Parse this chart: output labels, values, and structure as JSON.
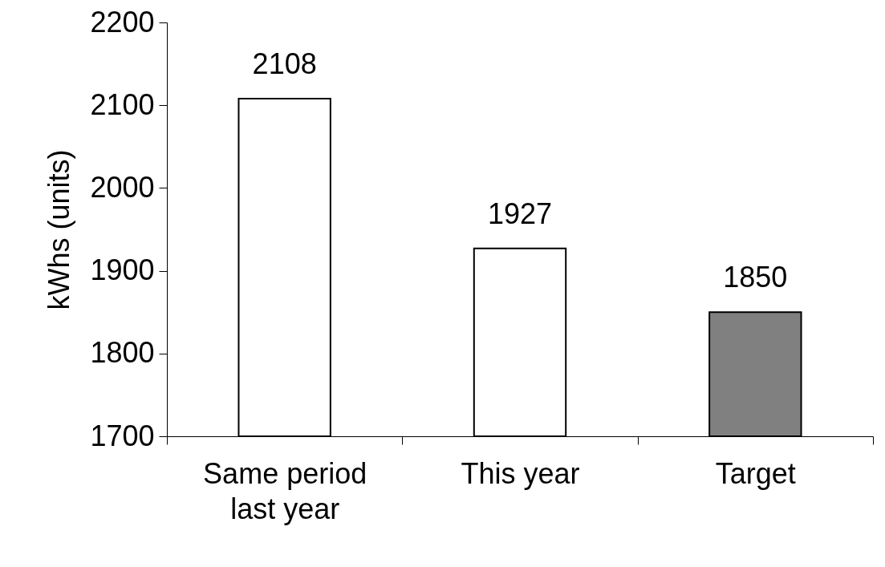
{
  "chart_data": {
    "type": "bar",
    "ylabel": "kWhs (units)",
    "categories": [
      "Same period last year",
      "This year",
      "Target"
    ],
    "values": [
      2108,
      1927,
      1850
    ],
    "colors": [
      "#ffffff",
      "#ffffff",
      "#808080"
    ],
    "ylim": [
      1700,
      2200
    ],
    "yticks": [
      1700,
      1800,
      1900,
      2000,
      2100,
      2200
    ],
    "data_labels": true,
    "grid": false
  }
}
